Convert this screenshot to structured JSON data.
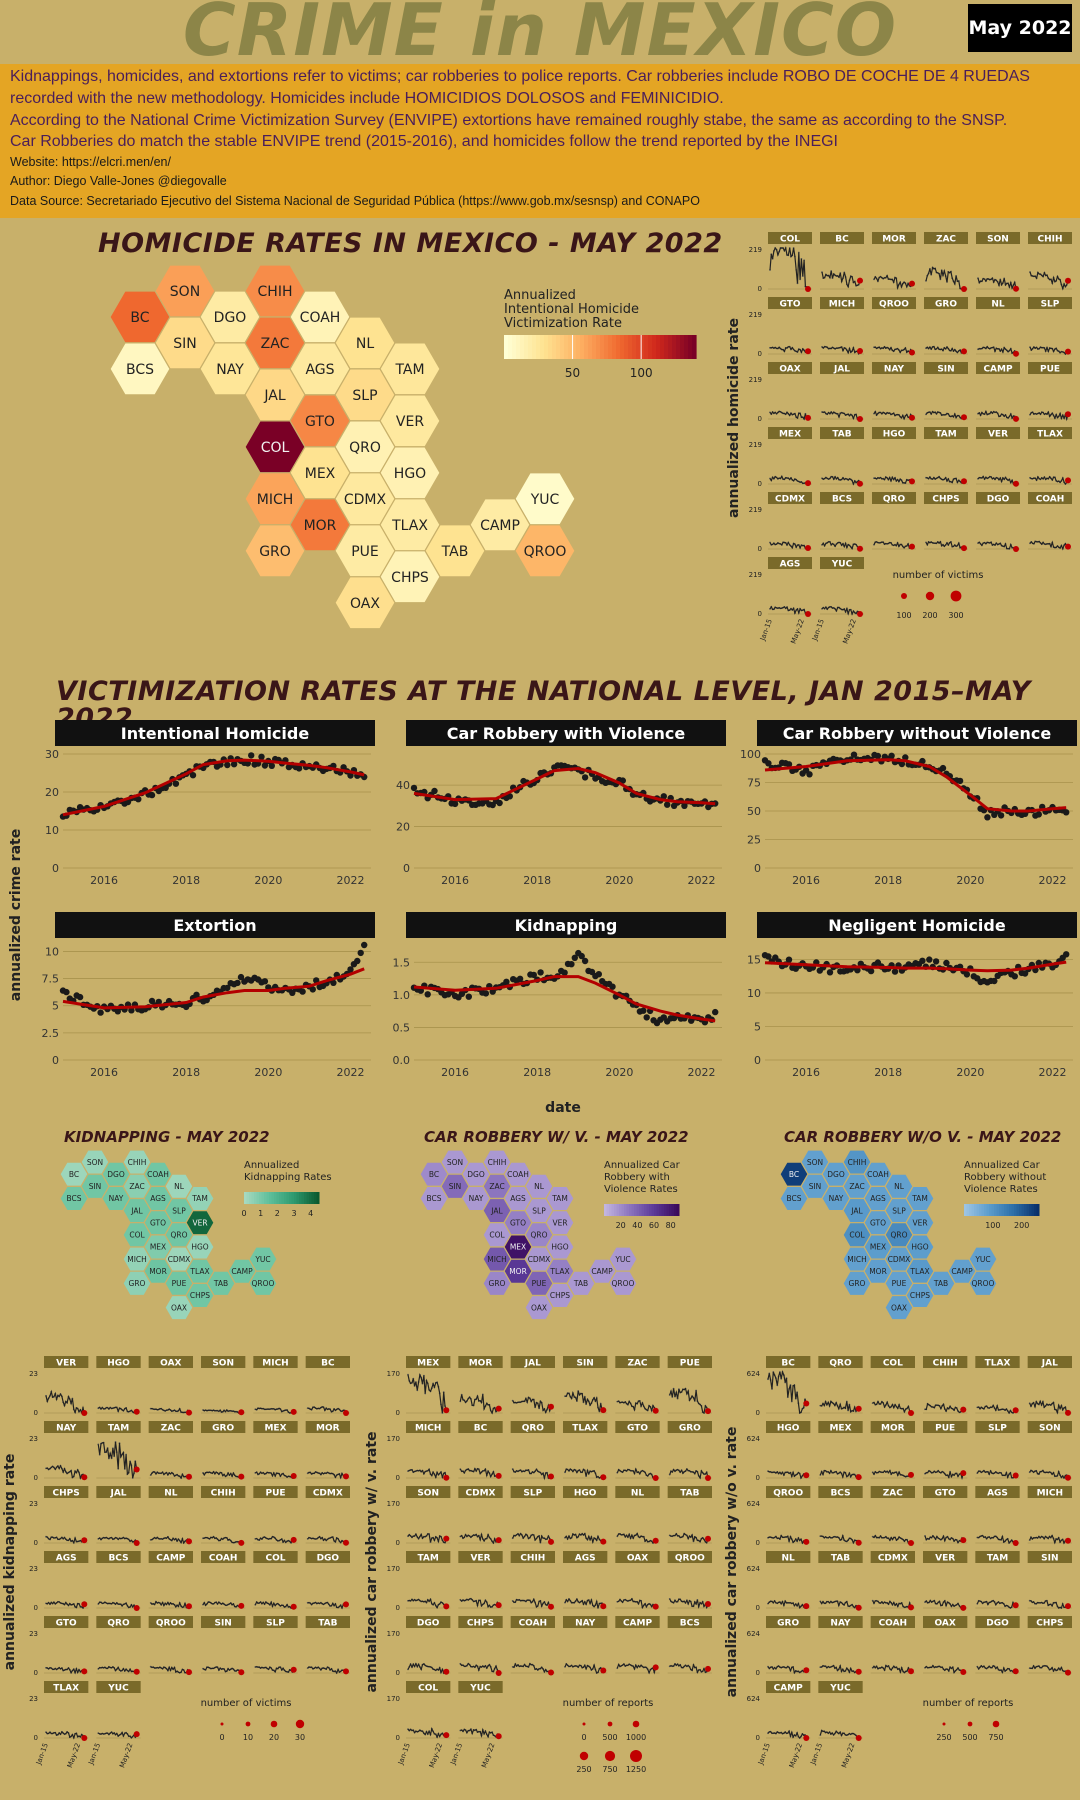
{
  "title": "CRIME in MEXICO",
  "date_badge": "May 2022",
  "info": {
    "lines": [
      "Kidnappings, homicides, and extortions refer to victims; car robberies to police reports. Car robberies include ROBO DE COCHE DE 4 RUEDAS recorded with the new methodology. Homicides include HOMICIDIOS DOLOSOS and FEMINICIDIO.",
      "According to the National Crime Victimization Survey (ENVIPE) extortions have remained roughly stabe, the same as according to the SNSP.",
      "Car Robberies do match the stable ENVIPE trend (2015-2016), and homicides follow the trend reported by the INEGI"
    ],
    "website": "Website: https://elcri.men/en/",
    "author": "Author: Diego Valle-Jones @diegovalle",
    "source": "Data Source: Secretariado Ejecutivo del Sistema Nacional de Seguridad Pública (https://www.gob.mx/sesnsp) and CONAPO"
  },
  "homicide_map": {
    "heading": "HOMICIDE RATES IN MEXICO - MAY 2022",
    "legend_title": [
      "Annualized",
      "Intentional Homicide",
      "Victimization Rate"
    ],
    "legend_ticks": [
      "50",
      "100"
    ]
  },
  "hom_small": {
    "ylabel": "annualized homicide rate",
    "ytick": "219",
    "order": [
      "COL",
      "BC",
      "MOR",
      "ZAC",
      "SON",
      "CHIH",
      "GTO",
      "MICH",
      "QROO",
      "GRO",
      "NL",
      "SLP",
      "OAX",
      "JAL",
      "NAY",
      "SIN",
      "CAMP",
      "PUE",
      "MEX",
      "TAB",
      "HGO",
      "TAM",
      "VER",
      "TLAX",
      "CDMX",
      "BCS",
      "QRO",
      "CHPS",
      "DGO",
      "COAH",
      "AGS",
      "YUC"
    ],
    "xticks": [
      "Jan-15",
      "May-22"
    ],
    "size_legend_title": "number of victims",
    "size_legend": [
      "100",
      "200",
      "300"
    ]
  },
  "national": {
    "heading": "VICTIMIZATION RATES AT THE NATIONAL LEVEL, JAN 2015–MAY 2022",
    "ylabel": "annualized crime rate",
    "xlabel": "date",
    "xticks": [
      "2016",
      "2018",
      "2020",
      "2022"
    ]
  },
  "bottom_maps": [
    {
      "heading": "KIDNAPPING - MAY 2022",
      "legend_title": [
        "Annualized",
        "Kidnapping Rates"
      ],
      "ticks": [
        "0",
        "1",
        "2",
        "3",
        "4"
      ]
    },
    {
      "heading": "CAR ROBBERY W/ V. - MAY 2022",
      "legend_title": [
        "Annualized Car",
        "Robbery with",
        "Violence Rates"
      ],
      "ticks": [
        "20",
        "40",
        "60",
        "80"
      ]
    },
    {
      "heading": "CAR ROBBERY W/O V. - MAY 2022",
      "legend_title": [
        "Annualized Car",
        "Robbery without",
        "Violence Rates"
      ],
      "ticks": [
        "100",
        "200"
      ]
    }
  ],
  "bottom_small": [
    {
      "ylabel": "annualized kidnapping rate",
      "ytick": "23",
      "order": [
        "VER",
        "HGO",
        "OAX",
        "SON",
        "MICH",
        "BC",
        "NAY",
        "TAM",
        "ZAC",
        "GRO",
        "MEX",
        "MOR",
        "CHPS",
        "JAL",
        "NL",
        "CHIH",
        "PUE",
        "CDMX",
        "AGS",
        "BCS",
        "CAMP",
        "COAH",
        "COL",
        "DGO",
        "GTO",
        "QRO",
        "QROO",
        "SIN",
        "SLP",
        "TAB",
        "TLAX",
        "YUC"
      ],
      "size_legend_title": "number of victims",
      "size_legend": [
        "0",
        "10",
        "20",
        "30"
      ]
    },
    {
      "ylabel": "annualized car robbery w/ v. rate",
      "ytick": "170",
      "order": [
        "MEX",
        "MOR",
        "JAL",
        "SIN",
        "ZAC",
        "PUE",
        "MICH",
        "BC",
        "QRO",
        "TLAX",
        "GTO",
        "GRO",
        "SON",
        "CDMX",
        "SLP",
        "HGO",
        "NL",
        "TAB",
        "TAM",
        "VER",
        "CHIH",
        "AGS",
        "OAX",
        "QROO",
        "DGO",
        "CHPS",
        "COAH",
        "NAY",
        "CAMP",
        "BCS",
        "COL",
        "YUC"
      ],
      "size_legend_title": "number of reports",
      "size_legend": [
        "0",
        "500",
        "1000",
        "250",
        "750",
        "1250"
      ]
    },
    {
      "ylabel": "annualized car robbery w/o v. rate",
      "ytick": "624",
      "order": [
        "BC",
        "QRO",
        "COL",
        "CHIH",
        "TLAX",
        "JAL",
        "HGO",
        "MEX",
        "MOR",
        "PUE",
        "SLP",
        "SON",
        "QROO",
        "BCS",
        "ZAC",
        "GTO",
        "AGS",
        "MICH",
        "NL",
        "TAB",
        "CDMX",
        "VER",
        "TAM",
        "SIN",
        "GRO",
        "NAY",
        "COAH",
        "OAX",
        "DGO",
        "CHPS",
        "CAMP",
        "YUC"
      ],
      "size_legend_title": "number of reports",
      "size_legend": [
        "250",
        "500",
        "750"
      ]
    }
  ],
  "colors": {
    "background": "#c8b06a",
    "info_bar": "#e4a524",
    "panel_header": "#111111",
    "trend_line": "#b30000",
    "strip": "#7a6a2a"
  },
  "chart_data": [
    {
      "type": "hex_choropleth",
      "title": "HOMICIDE RATES IN MEXICO - MAY 2022",
      "legend": "Annualized Intentional Homicide Victimization Rate",
      "states": {
        "SON": 62,
        "CHIH": 70,
        "BC": 85,
        "DGO": 20,
        "COAH": 12,
        "SIN": 32,
        "ZAC": 78,
        "NL": 28,
        "BCS": 8,
        "NAY": 25,
        "AGS": 22,
        "TAM": 24,
        "JAL": 34,
        "SLP": 32,
        "GTO": 72,
        "VER": 22,
        "COL": 145,
        "QRO": 14,
        "MEX": 28,
        "HGO": 14,
        "MICH": 60,
        "CDMX": 22,
        "YUC": 4,
        "TLAX": 20,
        "CAMP": 20,
        "MOR": 78,
        "GRO": 48,
        "PUE": 20,
        "TAB": 28,
        "QROO": 52,
        "CHPS": 12,
        "OAX": 30
      }
    },
    {
      "type": "scatter_trend",
      "title": "Intentional Homicide",
      "ylim": [
        0,
        30
      ],
      "yticks": [
        0,
        10,
        20,
        30
      ],
      "xlim": [
        "2015-01",
        "2022-05"
      ],
      "x": [
        "2015-01",
        "2016-01",
        "2017-01",
        "2018-01",
        "2018-06",
        "2019-01",
        "2019-06",
        "2020-01",
        "2020-06",
        "2021-01",
        "2021-06",
        "2022-01",
        "2022-05"
      ],
      "values": [
        14,
        16.5,
        19.5,
        24.5,
        27,
        28.3,
        28.6,
        28,
        27.8,
        27,
        26.3,
        25,
        24.5
      ],
      "trend": [
        14,
        16.2,
        19.8,
        24.8,
        27.2,
        28.2,
        28.4,
        28.1,
        27.6,
        27,
        26.4,
        25.3,
        24.5
      ]
    },
    {
      "type": "scatter_trend",
      "title": "Car Robbery with Violence",
      "ylim": [
        0,
        55
      ],
      "yticks": [
        0,
        20,
        40
      ],
      "xlim": [
        "2015-01",
        "2022-05"
      ],
      "x": [
        "2015-01",
        "2016-01",
        "2017-01",
        "2018-01",
        "2018-06",
        "2019-01",
        "2019-06",
        "2020-01",
        "2020-06",
        "2021-01",
        "2021-06",
        "2022-01",
        "2022-05"
      ],
      "values": [
        37,
        33,
        32,
        44,
        48,
        47,
        44,
        41,
        36,
        33,
        32,
        32,
        29
      ],
      "trend": [
        36,
        33,
        33.5,
        43,
        47,
        48,
        46,
        41,
        36,
        33,
        32,
        31.5,
        31
      ]
    },
    {
      "type": "scatter_trend",
      "title": "Car Robbery without Violence",
      "ylim": [
        0,
        100
      ],
      "yticks": [
        0,
        25,
        50,
        75,
        100
      ],
      "xlim": [
        "2015-01",
        "2022-05"
      ],
      "x": [
        "2015-01",
        "2016-01",
        "2017-01",
        "2018-01",
        "2018-06",
        "2019-01",
        "2019-06",
        "2020-01",
        "2020-06",
        "2021-01",
        "2021-06",
        "2022-01",
        "2022-05"
      ],
      "values": [
        92,
        85,
        96,
        95,
        95,
        92,
        83,
        65,
        47,
        50,
        48,
        52,
        50
      ],
      "trend": [
        86,
        89,
        94,
        95,
        94,
        89,
        80,
        64,
        52,
        50,
        50,
        52,
        53
      ]
    },
    {
      "type": "scatter_trend",
      "title": "Extortion",
      "ylim": [
        0,
        10.5
      ],
      "yticks": [
        0.0,
        2.5,
        5.0,
        7.5,
        10.0
      ],
      "xlim": [
        "2015-01",
        "2022-05"
      ],
      "x": [
        "2015-01",
        "2016-01",
        "2017-01",
        "2018-01",
        "2018-06",
        "2019-01",
        "2019-06",
        "2020-01",
        "2020-06",
        "2021-01",
        "2021-06",
        "2022-01",
        "2022-05"
      ],
      "values": [
        6,
        4.6,
        5,
        5.3,
        5.8,
        6.5,
        7.5,
        6.8,
        6.5,
        6.8,
        7.3,
        8,
        10.5
      ],
      "trend": [
        5.4,
        4.8,
        4.9,
        5.3,
        5.8,
        6.2,
        6.4,
        6.4,
        6.6,
        6.8,
        7.3,
        7.9,
        8.4
      ]
    },
    {
      "type": "scatter_trend",
      "title": "Kidnapping",
      "ylim": [
        0,
        1.75
      ],
      "yticks": [
        0.0,
        0.5,
        1.0,
        1.5
      ],
      "xlim": [
        "2015-01",
        "2022-05"
      ],
      "x": [
        "2015-01",
        "2016-01",
        "2017-01",
        "2018-01",
        "2018-06",
        "2019-01",
        "2019-06",
        "2020-01",
        "2020-06",
        "2021-01",
        "2021-06",
        "2022-01",
        "2022-05"
      ],
      "values": [
        1.1,
        1.0,
        1.1,
        1.3,
        1.2,
        1.6,
        1.3,
        1.0,
        0.8,
        0.6,
        0.7,
        0.6,
        0.7
      ],
      "trend": [
        1.12,
        1.07,
        1.1,
        1.22,
        1.28,
        1.28,
        1.18,
        1.0,
        0.86,
        0.75,
        0.69,
        0.63,
        0.6
      ]
    },
    {
      "type": "scatter_trend",
      "title": "Negligent Homicide",
      "ylim": [
        0,
        17
      ],
      "yticks": [
        0,
        5,
        10,
        15
      ],
      "xlim": [
        "2015-01",
        "2022-05"
      ],
      "x": [
        "2015-01",
        "2016-01",
        "2017-01",
        "2018-01",
        "2018-06",
        "2019-01",
        "2019-06",
        "2020-01",
        "2020-06",
        "2021-01",
        "2021-06",
        "2022-01",
        "2022-05"
      ],
      "values": [
        15,
        14,
        13.5,
        14,
        13.5,
        14.5,
        14,
        13,
        11.5,
        13,
        13.5,
        14.5,
        15.5
      ],
      "trend": [
        14.5,
        14.2,
        13.9,
        13.8,
        13.7,
        13.7,
        13.6,
        13.4,
        13.3,
        13.4,
        13.7,
        14.3,
        14.6
      ]
    },
    {
      "type": "hex_choropleth",
      "title": "KIDNAPPING - MAY 2022",
      "legend": "Annualized Kidnapping Rates",
      "states": {
        "VER": 4.2,
        "MOR": 1.2,
        "MEX": 0.8,
        "ZAC": 0.6,
        "CHIH": 0.3,
        "BC": 0.2,
        "SON": 0.3,
        "TAM": 0.4,
        "NL": 0.2,
        "GRO": 0.5,
        "OAX": 0.3,
        "HGO": 0.3,
        "MICH": 0.4,
        "CDMX": 0.2
      }
    },
    {
      "type": "hex_choropleth",
      "title": "CAR ROBBERY W/ V. - MAY 2022",
      "legend": "Annualized Car Robbery with Violence Rates",
      "states": {
        "MEX": 85,
        "MOR": 62,
        "MICH": 45,
        "JAL": 40,
        "PUE": 38,
        "SIN": 35,
        "ZAC": 30,
        "TLAX": 25,
        "GTO": 25,
        "QRO": 22,
        "GRO": 22,
        "BC": 20
      }
    },
    {
      "type": "hex_choropleth",
      "title": "CAR ROBBERY W/O V. - MAY 2022",
      "legend": "Annualized Car Robbery without Violence Rates",
      "states": {
        "BC": 240,
        "QRO": 120,
        "COL": 110,
        "CHIH": 100,
        "TLAX": 90,
        "JAL": 90,
        "HGO": 85,
        "MEX": 85,
        "MOR": 80,
        "PUE": 75
      }
    }
  ]
}
